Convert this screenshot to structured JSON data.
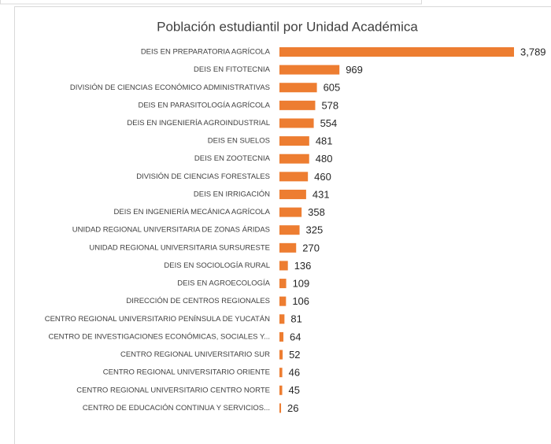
{
  "chart_data": {
    "type": "bar",
    "orientation": "horizontal",
    "title": "Población estudiantil por Unidad Académica",
    "categories": [
      "DEIS EN PREPARATORIA AGRÍCOLA",
      "DEIS EN FITOTECNIA",
      "DIVISIÓN DE CIENCIAS ECONÓMICO ADMINISTRATIVAS",
      "DEIS EN PARASITOLOGÍA AGRÍCOLA",
      "DEIS EN INGENIERÍA AGROINDUSTRIAL",
      "DEIS EN SUELOS",
      "DEIS EN ZOOTECNIA",
      "DIVISIÓN DE CIENCIAS FORESTALES",
      "DEIS EN IRRIGACIÓN",
      "DEIS EN INGENIERÍA MECÁNICA AGRÍCOLA",
      "UNIDAD REGIONAL UNIVERSITARIA DE ZONAS ÁRIDAS",
      "UNIDAD REGIONAL UNIVERSITARIA SURSURESTE",
      "DEIS EN SOCIOLOGÍA RURAL",
      "DEIS EN AGROECOLOGÍA",
      "DIRECCIÓN DE CENTROS REGIONALES",
      "CENTRO REGIONAL UNIVERSITARIO PENÍNSULA DE YUCATÁN",
      "CENTRO DE INVESTIGACIONES ECONÓMICAS, SOCIALES Y...",
      "CENTRO REGIONAL UNIVERSITARIO SUR",
      "CENTRO REGIONAL UNIVERSITARIO ORIENTE",
      "CENTRO REGIONAL UNIVERSITARIO CENTRO NORTE",
      "CENTRO DE EDUCACIÓN CONTINUA Y SERVICIOS..."
    ],
    "values": [
      3789,
      969,
      605,
      578,
      554,
      481,
      480,
      460,
      431,
      358,
      325,
      270,
      136,
      109,
      106,
      81,
      64,
      52,
      46,
      45,
      26
    ],
    "value_labels": [
      "3,789",
      "969",
      "605",
      "578",
      "554",
      "481",
      "480",
      "460",
      "431",
      "358",
      "325",
      "270",
      "136",
      "109",
      "106",
      "81",
      "64",
      "52",
      "46",
      "45",
      "26"
    ],
    "color": "#ed7d31"
  }
}
